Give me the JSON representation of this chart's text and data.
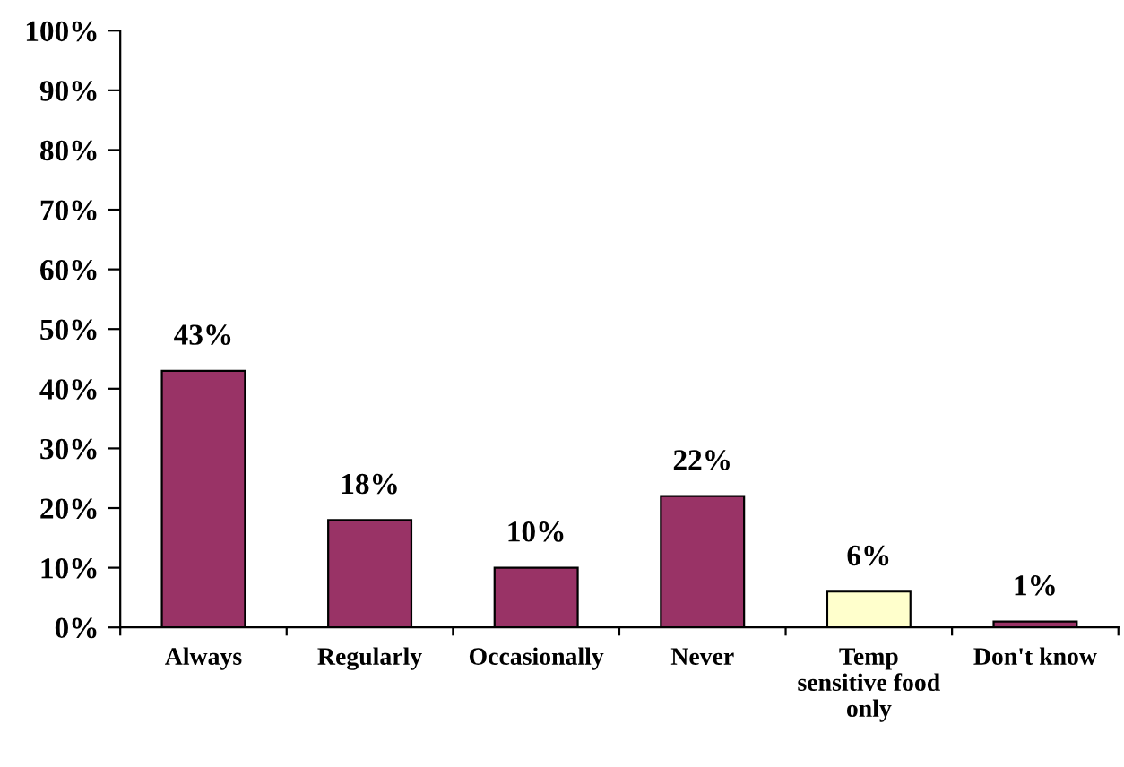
{
  "chart_data": {
    "type": "bar",
    "categories": [
      "Always",
      "Regularly",
      "Occasionally",
      "Never",
      "Temp\nsensitive food\nonly",
      "Don't know"
    ],
    "values": [
      43,
      18,
      10,
      22,
      6,
      1
    ],
    "colors": [
      "#993366",
      "#993366",
      "#993366",
      "#993366",
      "#ffffcc",
      "#993366"
    ],
    "value_labels": [
      "43%",
      "18%",
      "10%",
      "22%",
      "6%",
      "1%"
    ],
    "ylim": [
      0,
      100
    ],
    "yticks": [
      {
        "value": 0,
        "label": "0%"
      },
      {
        "value": 10,
        "label": "10%"
      },
      {
        "value": 20,
        "label": "20%"
      },
      {
        "value": 30,
        "label": "30%"
      },
      {
        "value": 40,
        "label": "40%"
      },
      {
        "value": 50,
        "label": "50%"
      },
      {
        "value": 60,
        "label": "60%"
      },
      {
        "value": 70,
        "label": "70%"
      },
      {
        "value": 80,
        "label": "80%"
      },
      {
        "value": 90,
        "label": "90%"
      },
      {
        "value": 100,
        "label": "100%"
      }
    ],
    "grid": false,
    "legend": false
  }
}
